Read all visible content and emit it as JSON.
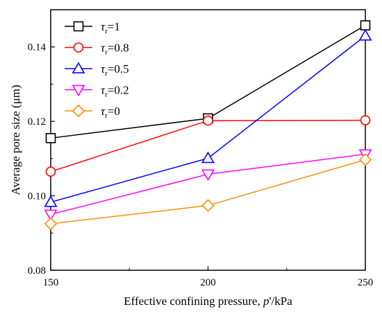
{
  "chart_data": {
    "type": "line",
    "x": [
      150,
      200,
      250
    ],
    "xlabel_prefix": "Effective confining pressure, ",
    "xlabel_var": "p",
    "xlabel_suffix": "'/kPa",
    "ylabel": "Average pore size (μm)",
    "xlim": [
      150,
      250
    ],
    "ylim": [
      0.08,
      0.15
    ],
    "xticks": [
      150,
      200,
      250
    ],
    "yticks": [
      0.08,
      0.1,
      0.12,
      0.14
    ],
    "xtick_labels": [
      "150",
      "200",
      "250"
    ],
    "ytick_labels": [
      "0.08",
      "0.10",
      "0.12",
      "0.14"
    ],
    "legend_position": "top-left",
    "legend_symbol": "τ",
    "legend_subscript": "r",
    "series": [
      {
        "name": "=1",
        "color": "#000000",
        "marker": "square",
        "values": [
          0.1155,
          0.1208,
          0.1458
        ]
      },
      {
        "name": "=0.8",
        "color": "#ff0000",
        "marker": "circle",
        "values": [
          0.1065,
          0.1202,
          0.1203
        ]
      },
      {
        "name": "=0.5",
        "color": "#0000ff",
        "marker": "triangle-up",
        "values": [
          0.0983,
          0.1101,
          0.143
        ]
      },
      {
        "name": "=0.2",
        "color": "#ff00ff",
        "marker": "triangle-down",
        "values": [
          0.095,
          0.1058,
          0.1112
        ]
      },
      {
        "name": "=0",
        "color": "#ff8c00",
        "marker": "diamond",
        "values": [
          0.0925,
          0.0974,
          0.1097
        ]
      }
    ]
  }
}
